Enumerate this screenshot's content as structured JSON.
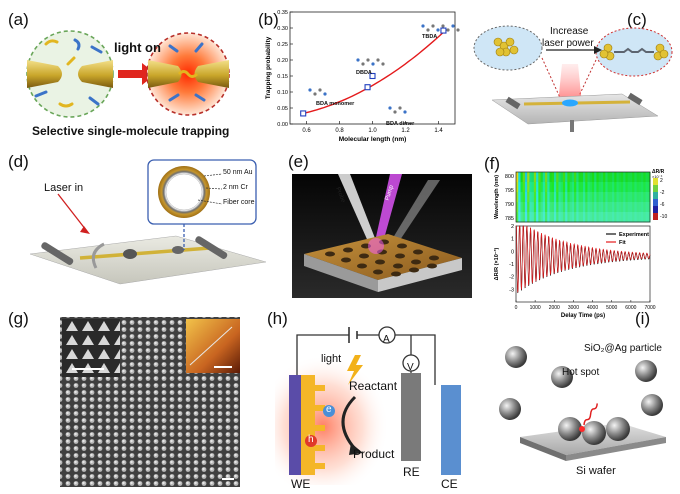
{
  "panels": {
    "a": {
      "label": "(a)",
      "arrow_text": "light on",
      "caption": "Selective single-molecule trapping"
    },
    "b": {
      "label": "(b)",
      "molecule_labels": [
        "TBDA",
        "DBDA",
        "BDA monomer",
        "BDA dimer"
      ]
    },
    "c": {
      "label": "(c)",
      "text_line1": "Increase",
      "text_line2": "laser power"
    },
    "d": {
      "label": "(d)",
      "laser_label": "Laser in",
      "layers": [
        "50 nm Au",
        "2 nm Cr",
        "Fiber core"
      ]
    },
    "e": {
      "label": "(e)",
      "beam_labels": [
        "Probe",
        "Pump"
      ]
    },
    "f": {
      "label": "(f)",
      "colorbar_title": "ΔR/R",
      "colorbar_exp": "×10⁻³",
      "colorbar_ticks": [
        "2",
        "-2",
        "-6",
        "-10"
      ],
      "legend": [
        "Experiment",
        "Fit"
      ]
    },
    "g": {
      "label": "(g)"
    },
    "h": {
      "label": "(h)",
      "ammeter": "A",
      "voltmeter": "V",
      "light": "light",
      "reactant": "Reactant",
      "product": "Product",
      "electron": "e",
      "hole": "h",
      "we": "WE",
      "re": "RE",
      "ce": "CE"
    },
    "i": {
      "label": "(i)",
      "particle": "SiO₂@Ag particle",
      "hotspot": "Hot spot",
      "wafer": "Si wafer"
    }
  },
  "chart_data": [
    {
      "type": "scatter",
      "panel": "b",
      "title": "",
      "xlabel": "Molecular length (nm)",
      "ylabel": "Trapping probability",
      "xlim": [
        0.5,
        1.5
      ],
      "ylim": [
        0.0,
        0.35
      ],
      "xticks": [
        "0.6",
        "0.8",
        "1.0",
        "1.2",
        "1.4"
      ],
      "yticks": [
        "0.00",
        "0.05",
        "0.10",
        "0.15",
        "0.20",
        "0.25",
        "0.30",
        "0.35"
      ],
      "points": [
        {
          "x": 0.58,
          "y": 0.033
        },
        {
          "x": 0.97,
          "y": 0.115
        },
        {
          "x": 1.0,
          "y": 0.15
        },
        {
          "x": 1.43,
          "y": 0.292
        }
      ],
      "fit_color": "#e41a1c",
      "marker_color": "#1f3fbf"
    },
    {
      "type": "line",
      "panel": "f",
      "title": "",
      "xlabel": "Delay Time (ps)",
      "ylabel": "ΔR/R (×10⁻³)",
      "top_ylabel": "Wavelength (nm)",
      "top_yticks": [
        "800",
        "795",
        "790",
        "785"
      ],
      "xlim": [
        0,
        7000
      ],
      "ylim": [
        -4,
        2
      ],
      "xticks": [
        "0",
        "1000",
        "2000",
        "3000",
        "4000",
        "5000",
        "6000",
        "7000"
      ],
      "yticks": [
        "2",
        "1",
        "0",
        "-1",
        "-2",
        "-3"
      ],
      "series": [
        {
          "name": "Experiment",
          "color": "#111111",
          "amplitude": 3.0,
          "period_ps": 190,
          "decay_ps": 2600,
          "offset": -0.4
        },
        {
          "name": "Fit",
          "color": "#e41a1c",
          "amplitude": 3.0,
          "period_ps": 190,
          "decay_ps": 2600,
          "offset": -0.4
        }
      ]
    }
  ]
}
